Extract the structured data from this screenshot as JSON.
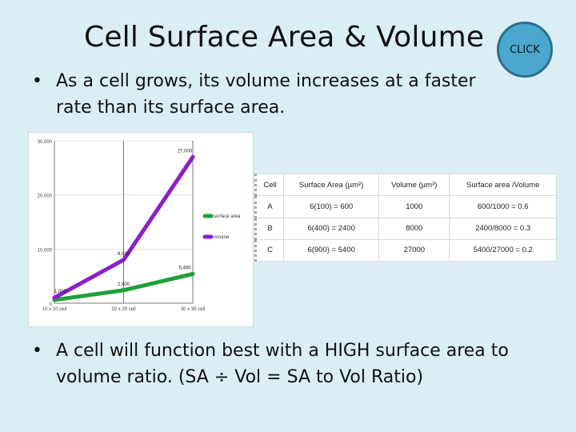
{
  "slide": {
    "title": "Cell Surface Area & Volume",
    "click_label": "CLICK",
    "bullet_char": "•",
    "bullet1": "As a cell grows, its volume increases at a faster rate than its surface area.",
    "bullet2": "A cell will function best with a HIGH surface area to volume ratio. (SA  ÷  Vol   =   SA to Vol Ratio)"
  },
  "table": {
    "headers": [
      "Cell",
      "Surface Area (µm²)",
      "Volume (µm³)",
      "Surface area /Volume"
    ],
    "rows": [
      [
        "A",
        "6(100) = 600",
        "1000",
        "600/1000 = 0.6"
      ],
      [
        "B",
        "6(400) = 2400",
        "8000",
        "2400/8000 = 0.3"
      ],
      [
        "C",
        "6(900) = 5400",
        "27000",
        "5400/27000 = 0.2"
      ]
    ]
  },
  "chart_data": {
    "type": "line",
    "categories": [
      "10 x 10 cell",
      "20 x 20 cell",
      "30 x 30 cell"
    ],
    "series": [
      {
        "name": "surface area",
        "values": [
          600,
          2400,
          5400
        ],
        "labels": [
          "",
          "2,400",
          "5,400"
        ],
        "color": "#1fa03a"
      },
      {
        "name": "volume",
        "values": [
          1000,
          8000,
          27000
        ],
        "labels": [
          "1,000",
          "8,000",
          "27,000"
        ],
        "color": "#8b1fc9"
      }
    ],
    "yticks": [
      0,
      10000,
      20000,
      30000
    ],
    "ytick_labels": [
      "0",
      "10,000",
      "20,000",
      "30,000"
    ],
    "ylim": [
      0,
      30000
    ],
    "grid": true,
    "legend": "right"
  }
}
